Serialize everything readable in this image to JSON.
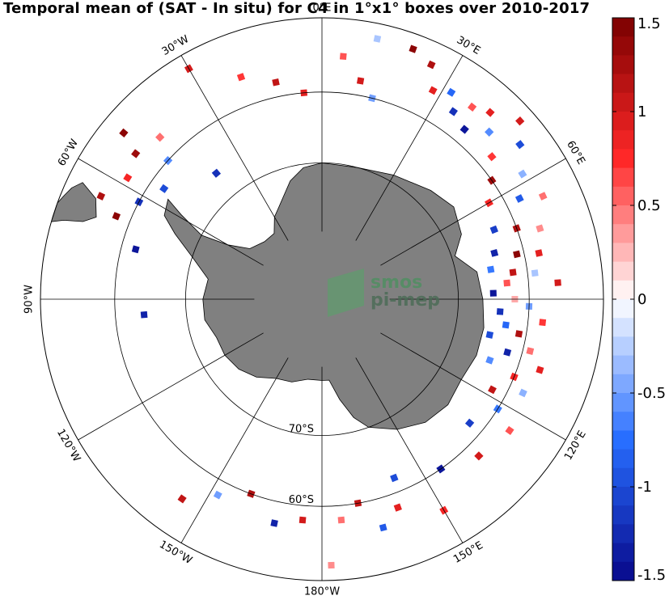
{
  "title": "Temporal mean of (SAT - In situ) for C4 in 1°x1° boxes over 2010-2017",
  "logo": {
    "line1": "smos",
    "line2": "pi-mep"
  },
  "longitude_labels": [
    {
      "lon": 0,
      "text": "0°E"
    },
    {
      "lon": 30,
      "text": "30°E"
    },
    {
      "lon": 60,
      "text": "60°E"
    },
    {
      "lon": 90,
      "text": ""
    },
    {
      "lon": 120,
      "text": "120°E"
    },
    {
      "lon": 150,
      "text": "150°E"
    },
    {
      "lon": 180,
      "text": "180°W"
    },
    {
      "lon": -150,
      "text": "150°W"
    },
    {
      "lon": -120,
      "text": "120°W"
    },
    {
      "lon": -90,
      "text": "90°W"
    },
    {
      "lon": -60,
      "text": "60°W"
    },
    {
      "lon": -30,
      "text": "30°W"
    }
  ],
  "latitude_labels": [
    {
      "lat": -70,
      "text": "70°S"
    },
    {
      "lat": -60,
      "text": "60°S"
    }
  ],
  "colorbar": {
    "min": -1.5,
    "max": 1.5,
    "ticks": [
      {
        "v": 1.5,
        "t": "1.5"
      },
      {
        "v": 1,
        "t": "1"
      },
      {
        "v": 0.5,
        "t": "0.5"
      },
      {
        "v": 0,
        "t": "0"
      },
      {
        "v": -0.5,
        "t": "-0.5"
      },
      {
        "v": -1,
        "t": "-1"
      },
      {
        "v": -1.5,
        "t": "-1.5"
      }
    ]
  },
  "colors": {
    "land": "#808080",
    "ocean": "#ffffff",
    "grid": "#000000",
    "cb_negative_dark": "#08088a",
    "cb_zero": "#ffffff",
    "cb_positive_dark": "#7a0000"
  },
  "chart_data": {
    "type": "heatmap",
    "projection": "south-polar-stereographic",
    "lat_range": [
      -90,
      -50
    ],
    "meridians_deg": [
      0,
      30,
      60,
      90,
      120,
      150,
      180,
      -150,
      -120,
      -90,
      -60,
      -30
    ],
    "parallels_deg": [
      -70,
      -60,
      -50
    ],
    "boxes": [
      {
        "lon": 20,
        "lat": -52,
        "v": 1.4
      },
      {
        "lon": 25,
        "lat": -53,
        "v": 1.2
      },
      {
        "lon": 28,
        "lat": -56,
        "v": 0.9
      },
      {
        "lon": 32,
        "lat": -55,
        "v": -0.8
      },
      {
        "lon": 35,
        "lat": -57,
        "v": -1.2
      },
      {
        "lon": 38,
        "lat": -55,
        "v": 0.6
      },
      {
        "lon": 40,
        "lat": -58,
        "v": -1.4
      },
      {
        "lon": 42,
        "lat": -54,
        "v": 0.9
      },
      {
        "lon": 45,
        "lat": -56,
        "v": -0.6
      },
      {
        "lon": 48,
        "lat": -52,
        "v": 1.0
      },
      {
        "lon": 50,
        "lat": -58,
        "v": 0.7
      },
      {
        "lon": 52,
        "lat": -54,
        "v": -1.0
      },
      {
        "lon": 55,
        "lat": -60,
        "v": 1.3
      },
      {
        "lon": 58,
        "lat": -56,
        "v": -0.4
      },
      {
        "lon": 60,
        "lat": -62,
        "v": 0.8
      },
      {
        "lon": 63,
        "lat": -58,
        "v": -0.9
      },
      {
        "lon": 65,
        "lat": -55,
        "v": 0.5
      },
      {
        "lon": 68,
        "lat": -63,
        "v": -1.1
      },
      {
        "lon": 70,
        "lat": -60,
        "v": 1.2
      },
      {
        "lon": 72,
        "lat": -57,
        "v": 0.4
      },
      {
        "lon": 75,
        "lat": -64,
        "v": -1.3
      },
      {
        "lon": 77,
        "lat": -61,
        "v": 1.4
      },
      {
        "lon": 78,
        "lat": -58,
        "v": 0.9
      },
      {
        "lon": 80,
        "lat": -65,
        "v": -0.7
      },
      {
        "lon": 82,
        "lat": -62,
        "v": 1.1
      },
      {
        "lon": 83,
        "lat": -59,
        "v": -0.3
      },
      {
        "lon": 85,
        "lat": -63,
        "v": 0.6
      },
      {
        "lon": 86,
        "lat": -56,
        "v": 1.0
      },
      {
        "lon": 88,
        "lat": -65,
        "v": -1.4
      },
      {
        "lon": 90,
        "lat": -62,
        "v": 0.3
      },
      {
        "lon": 92,
        "lat": -60,
        "v": -0.5
      },
      {
        "lon": 94,
        "lat": -64,
        "v": -1.2
      },
      {
        "lon": 96,
        "lat": -58,
        "v": 0.7
      },
      {
        "lon": 98,
        "lat": -63,
        "v": -0.8
      },
      {
        "lon": 100,
        "lat": -61,
        "v": 1.2
      },
      {
        "lon": 102,
        "lat": -65,
        "v": -1.0
      },
      {
        "lon": 104,
        "lat": -59,
        "v": 0.5
      },
      {
        "lon": 106,
        "lat": -62,
        "v": -1.3
      },
      {
        "lon": 108,
        "lat": -57,
        "v": 0.9
      },
      {
        "lon": 110,
        "lat": -64,
        "v": -0.6
      },
      {
        "lon": 112,
        "lat": -60,
        "v": 0.8
      },
      {
        "lon": 115,
        "lat": -58,
        "v": -0.4
      },
      {
        "lon": 118,
        "lat": -62,
        "v": 1.1
      },
      {
        "lon": 122,
        "lat": -60,
        "v": -0.7
      },
      {
        "lon": 125,
        "lat": -57,
        "v": 0.6
      },
      {
        "lon": 130,
        "lat": -62,
        "v": -1.1
      },
      {
        "lon": 135,
        "lat": -58,
        "v": 1.0
      },
      {
        "lon": 145,
        "lat": -60,
        "v": -1.4
      },
      {
        "lon": 150,
        "lat": -55,
        "v": 0.8
      },
      {
        "lon": 158,
        "lat": -62,
        "v": -1.0
      },
      {
        "lon": 160,
        "lat": -58,
        "v": 0.9
      },
      {
        "lon": 165,
        "lat": -56,
        "v": -0.9
      },
      {
        "lon": 170,
        "lat": -60,
        "v": 1.1
      },
      {
        "lon": 175,
        "lat": -58,
        "v": 0.5
      },
      {
        "lon": 178,
        "lat": -52,
        "v": 0.4
      },
      {
        "lon": -175,
        "lat": -58,
        "v": 1.0
      },
      {
        "lon": -168,
        "lat": -57,
        "v": -1.3
      },
      {
        "lon": -160,
        "lat": -60,
        "v": 1.2
      },
      {
        "lon": -152,
        "lat": -58,
        "v": -0.5
      },
      {
        "lon": -145,
        "lat": -55,
        "v": 1.1
      },
      {
        "lon": -95,
        "lat": -64,
        "v": -1.3
      },
      {
        "lon": -75,
        "lat": -62,
        "v": -1.4
      },
      {
        "lon": -68,
        "lat": -58,
        "v": 1.4
      },
      {
        "lon": -65,
        "lat": -55,
        "v": 1.2
      },
      {
        "lon": -62,
        "lat": -60,
        "v": -1.2
      },
      {
        "lon": -58,
        "lat": -57,
        "v": 0.8
      },
      {
        "lon": -55,
        "lat": -62,
        "v": -1.0
      },
      {
        "lon": -52,
        "lat": -56,
        "v": 1.3
      },
      {
        "lon": -50,
        "lat": -53,
        "v": 1.4
      },
      {
        "lon": -48,
        "lat": -60,
        "v": -0.6
      },
      {
        "lon": -45,
        "lat": -57,
        "v": 0.5
      },
      {
        "lon": -40,
        "lat": -66,
        "v": -1.2
      },
      {
        "lon": -30,
        "lat": -52,
        "v": 1.0
      },
      {
        "lon": -20,
        "lat": -56,
        "v": 0.7
      },
      {
        "lon": -12,
        "lat": -58,
        "v": 1.1
      },
      {
        "lon": -5,
        "lat": -60,
        "v": 0.9
      },
      {
        "lon": 5,
        "lat": -55,
        "v": 0.6
      },
      {
        "lon": 10,
        "lat": -58,
        "v": 1.0
      },
      {
        "lon": 14,
        "lat": -60,
        "v": -0.5
      },
      {
        "lon": 12,
        "lat": -52,
        "v": -0.3
      }
    ]
  }
}
